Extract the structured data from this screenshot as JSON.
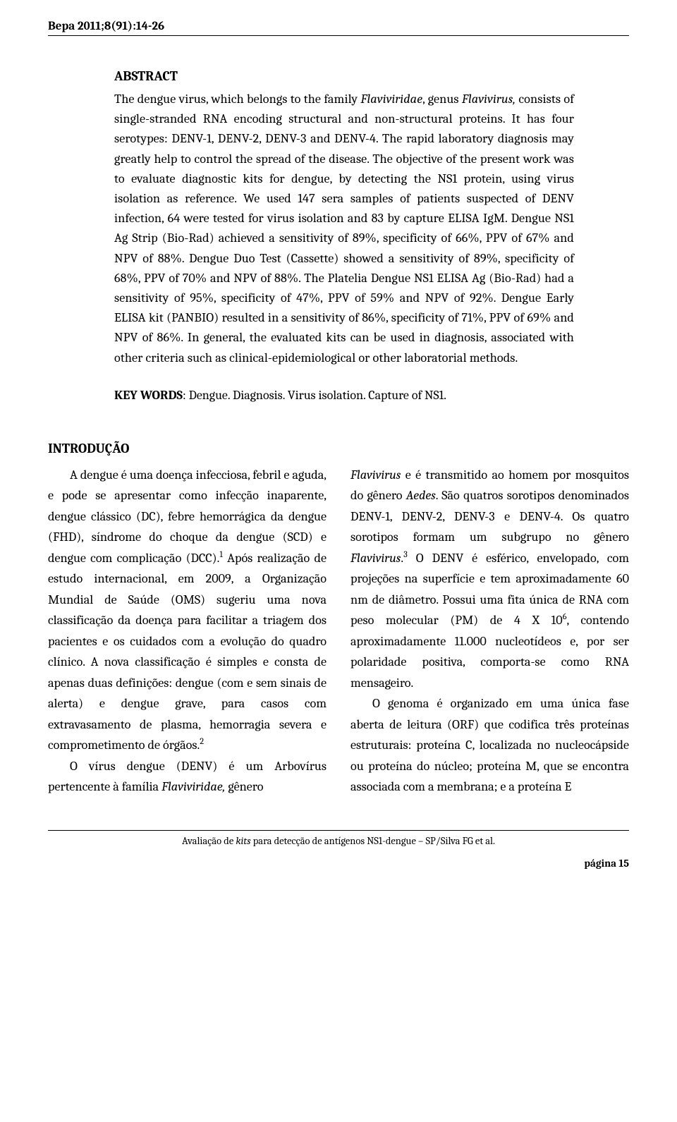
{
  "running_head": "Bepa 2011;8(91):14-26",
  "abstract": {
    "heading": "ABSTRACT",
    "body_html": "The dengue virus, which belongs to the family <em>Flaviviridae</em>, genus <em>Flavivirus,</em> consists of single-stranded RNA encoding structural and non-structural proteins. It has four serotypes: DENV-1, DENV-2, DENV-3 and DENV-4. The rapid laboratory diagnosis may greatly help to control the spread of the disease. The objective of the present work was to evaluate diagnostic kits for dengue, by detecting the NS1 protein, using virus isolation as reference. We used 147 sera samples of patients suspected of DENV infection, 64 were tested for virus isolation and 83 by capture ELISA IgM. Dengue NS1 Ag Strip (Bio-Rad) achieved a sensitivity of 89%, specificity of 66%, PPV of 67% and NPV of 88%. Dengue Duo Test (Cassette) showed a sensitivity of 89%, specificity of 68%, PPV of 70% and NPV of 88%. The Platelia Dengue NS1 ELISA Ag (Bio-Rad) had a sensitivity of 95%, specificity of 47%, PPV of 59% and NPV of 92%. Dengue Early ELISA kit (PANBIO) resulted in a sensitivity of 86%, specificity of 71%, PPV of 69% and NPV of 86%. In general, the evaluated kits can be used in diagnosis, associated with other criteria such as clinical-epidemiological or other laboratorial methods."
  },
  "keywords": {
    "label": "KEY WORDS",
    "text": ": Dengue. Diagnosis. Virus isolation. Capture of NS1."
  },
  "section_heading": "INTRODUÇÃO",
  "intro": {
    "left": [
      "A dengue é uma doença infecciosa, febril e aguda, e pode se apresentar como infecção inaparente, dengue clássico (DC), febre hemorrágica da dengue (FHD), síndrome do choque da dengue (SCD) e dengue com complicação (DCC).<sup>1</sup> Após realização de estudo internacional, em 2009, a Organização Mundial de Saúde (OMS) sugeriu uma nova classificação da doença para facilitar a triagem dos pacientes e os cuidados com a evolução do quadro clínico. A nova classificação é simples e consta de apenas duas definições: dengue (com e sem sinais de alerta) e dengue grave, para casos com extravasamento de plasma, hemorragia severa e comprometimento de órgãos.<sup>2</sup>",
      "O vírus dengue (DENV) é um Arbovírus pertencente à família <em>Flaviviridae,</em> gênero"
    ],
    "right": [
      "<em>Flavivirus</em> e é transmitido ao homem por mosquitos do gênero <em>Aedes</em>. São quatros sorotipos denominados DENV-1, DENV-2, DENV-3 e DENV-4. Os quatro sorotipos formam um subgrupo no gênero <em>Flavivirus</em>.<sup>3</sup> O DENV é esférico, envelopado, com projeções na superfície e tem aproximadamente 60 nm de diâmetro. Possui uma fita única de RNA com peso molecular (PM) de 4 X 10<sup>6</sup>, contendo aproximadamente 11.000 nucleotídeos e, por ser polaridade positiva, comporta-se como RNA mensageiro.",
      "O genoma é organizado em uma única fase aberta de leitura (ORF) que codifica três proteínas estruturais: proteína C, localizada no nucleocápside ou proteína do núcleo; proteína M, que se encontra associada com a membrana; e a proteína E"
    ]
  },
  "footer": "Avaliação de <em>kits</em> para detecção de antígenos NS1-dengue – SP/Silva FG et al.",
  "page_num": "página 15"
}
